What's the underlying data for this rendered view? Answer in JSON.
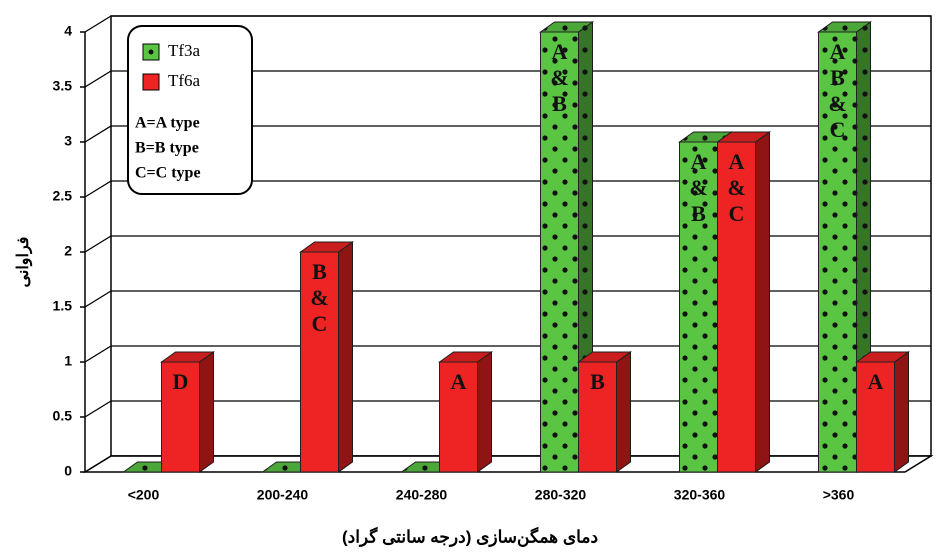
{
  "chart_data": {
    "type": "bar3d",
    "y_label": "فراوانی",
    "x_label": "دمای همگن‌سازی  (درجه سانتی گراد)",
    "categories": [
      "<200",
      "200-240",
      "240-280",
      "280-320",
      "320-360",
      ">360"
    ],
    "series": [
      {
        "name": "Tf3a",
        "color": "#5ac443",
        "values": [
          0,
          0,
          0,
          4,
          3,
          4
        ],
        "bar_labels": [
          null,
          null,
          null,
          [
            "A",
            "&",
            "B"
          ],
          [
            "A",
            "&",
            "B"
          ],
          [
            "A",
            "B",
            "&",
            "C"
          ]
        ]
      },
      {
        "name": "Tf6a",
        "color": "#ee2424",
        "values": [
          1,
          2,
          1,
          1,
          3,
          1
        ],
        "bar_labels": [
          [
            "D"
          ],
          [
            "B",
            "&",
            "C"
          ],
          [
            "A"
          ],
          [
            "B"
          ],
          [
            "A",
            "&",
            "C"
          ],
          [
            "A"
          ]
        ]
      }
    ],
    "legend_notes": [
      "A=A type",
      "B=B type",
      "C=C type"
    ],
    "ylim": [
      0,
      4
    ],
    "yticks": [
      0,
      0.5,
      1,
      1.5,
      2,
      2.5,
      3,
      3.5,
      4
    ],
    "grid": true
  }
}
